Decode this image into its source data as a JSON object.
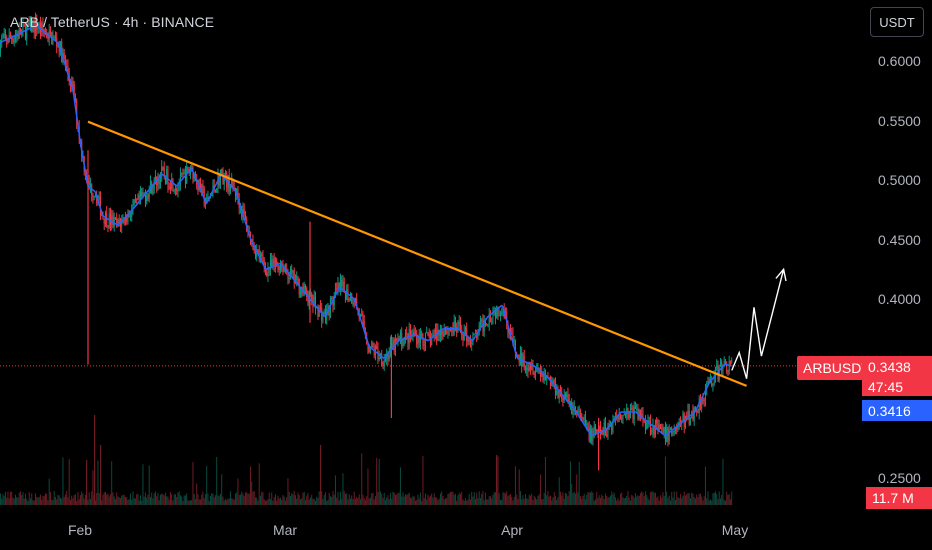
{
  "header": {
    "title": "ARB / TetherUS · 4h · BINANCE"
  },
  "currency_button": "USDT",
  "price_axis": {
    "labels": [
      "0.6000",
      "0.5500",
      "0.5000",
      "0.4500",
      "0.4000",
      "0.2500"
    ]
  },
  "time_axis": {
    "labels": [
      "Feb",
      "Mar",
      "Apr",
      "May"
    ]
  },
  "tags": {
    "symbol": "ARBUSDT",
    "last_price": "0.3438",
    "countdown": "47:45",
    "ma_value": "0.3416",
    "volume": "11.7 M"
  },
  "colors": {
    "background": "#000000",
    "up": "#089981",
    "down": "#f23645",
    "moving_average": "#2962ff",
    "trendline": "#ff9800",
    "projection": "#ffffff",
    "price_line": "#f23645"
  },
  "chart_data": {
    "type": "candlestick",
    "symbol": "ARBUSDT",
    "interval": "4h",
    "exchange": "BINANCE",
    "quote_currency": "USDT",
    "y_range": [
      0.222,
      0.64
    ],
    "y_ticks": [
      0.6,
      0.55,
      0.5,
      0.45,
      0.4,
      0.25
    ],
    "last_price": 0.3438,
    "moving_average_last": 0.3416,
    "volume_last": "11.7 M",
    "price_path": [
      [
        "2024-01-20",
        0.615
      ],
      [
        "2024-01-25",
        0.63
      ],
      [
        "2024-01-28",
        0.615
      ],
      [
        "2024-01-30",
        0.575
      ],
      [
        "2024-01-31",
        0.53
      ],
      [
        "2024-02-01",
        0.495
      ],
      [
        "2024-02-02",
        0.49
      ],
      [
        "2024-02-03",
        0.47
      ],
      [
        "2024-02-05",
        0.462
      ],
      [
        "2024-02-07",
        0.475
      ],
      [
        "2024-02-09",
        0.49
      ],
      [
        "2024-02-11",
        0.505
      ],
      [
        "2024-02-13",
        0.495
      ],
      [
        "2024-02-15",
        0.51
      ],
      [
        "2024-02-17",
        0.48
      ],
      [
        "2024-02-19",
        0.505
      ],
      [
        "2024-02-21",
        0.49
      ],
      [
        "2024-02-23",
        0.45
      ],
      [
        "2024-02-25",
        0.425
      ],
      [
        "2024-02-27",
        0.43
      ],
      [
        "2024-02-29",
        0.415
      ],
      [
        "2024-03-02",
        0.4
      ],
      [
        "2024-03-04",
        0.385
      ],
      [
        "2024-03-06",
        0.41
      ],
      [
        "2024-03-08",
        0.4
      ],
      [
        "2024-03-10",
        0.36
      ],
      [
        "2024-03-12",
        0.35
      ],
      [
        "2024-03-14",
        0.365
      ],
      [
        "2024-03-16",
        0.37
      ],
      [
        "2024-03-18",
        0.365
      ],
      [
        "2024-03-20",
        0.375
      ],
      [
        "2024-03-22",
        0.375
      ],
      [
        "2024-03-24",
        0.365
      ],
      [
        "2024-03-26",
        0.385
      ],
      [
        "2024-03-28",
        0.395
      ],
      [
        "2024-03-30",
        0.35
      ],
      [
        "2024-04-01",
        0.345
      ],
      [
        "2024-04-03",
        0.335
      ],
      [
        "2024-04-05",
        0.32
      ],
      [
        "2024-04-07",
        0.305
      ],
      [
        "2024-04-09",
        0.285
      ],
      [
        "2024-04-11",
        0.29
      ],
      [
        "2024-04-13",
        0.305
      ],
      [
        "2024-04-15",
        0.305
      ],
      [
        "2024-04-17",
        0.295
      ],
      [
        "2024-04-19",
        0.285
      ],
      [
        "2024-04-21",
        0.295
      ],
      [
        "2024-04-23",
        0.305
      ],
      [
        "2024-04-25",
        0.33
      ],
      [
        "2024-04-27",
        0.345
      ],
      [
        "2024-04-28",
        0.3438
      ]
    ],
    "wicks": [
      {
        "x": "2024-02-01",
        "high": 0.525,
        "low": 0.345
      },
      {
        "x": "2024-03-13",
        "high": 0.37,
        "low": 0.3
      },
      {
        "x": "2024-03-02",
        "high": 0.465,
        "low": 0.38
      },
      {
        "x": "2024-04-10",
        "high": 0.3,
        "low": 0.256
      }
    ],
    "trendline": [
      [
        "2024-02-01",
        0.549
      ],
      [
        "2024-04-30",
        0.327
      ]
    ],
    "projection_path": [
      [
        "2024-04-28",
        0.34
      ],
      [
        "2024-04-29",
        0.355
      ],
      [
        "2024-04-30",
        0.333
      ],
      [
        "2024-05-01",
        0.393
      ],
      [
        "2024-05-02",
        0.352
      ],
      [
        "2024-05-05",
        0.425
      ]
    ],
    "legend": "none",
    "grid": false
  }
}
